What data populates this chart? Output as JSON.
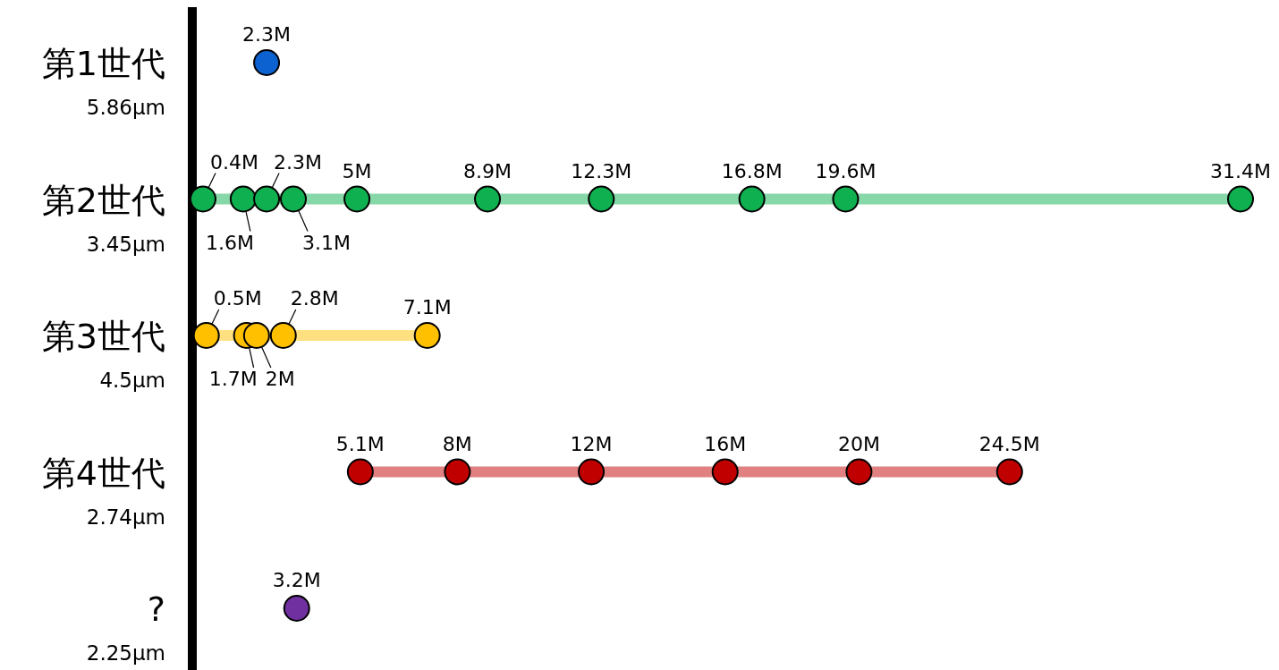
{
  "chart_data": {
    "type": "line",
    "orientation": "horizontal",
    "marker": "circle",
    "categories": [
      "第1世代",
      "第2世代",
      "第3世代",
      "第4世代",
      "?"
    ],
    "y2_categories": [
      "5.86µm",
      "3.45µm",
      "4.5µm",
      "2.74µm",
      "2.25µm"
    ],
    "series": [
      {
        "color": "#0b62d0",
        "values": [
          2.3
        ],
        "x": [
          "第1世代"
        ],
        "value_labels": [
          "2.3M"
        ]
      },
      {
        "color": "#0fb050",
        "values": [
          0.4,
          1.6,
          2.3,
          3.1,
          5,
          8.9,
          12.3,
          16.8,
          19.6,
          31.4
        ],
        "x": [
          "第2世代",
          "第2世代",
          "第2世代",
          "第2世代",
          "第2世代",
          "第2世代",
          "第2世代",
          "第2世代",
          "第2世代",
          "第2世代"
        ],
        "value_labels": [
          "0.4M",
          "1.6M",
          "2.3M",
          "3.1M",
          "5M",
          "8.9M",
          "12.3M",
          "16.8M",
          "19.6M",
          "31.4M"
        ]
      },
      {
        "color": "#ffc000",
        "values": [
          0.5,
          1.7,
          2,
          2.8,
          7.1
        ],
        "x": [
          "第3世代",
          "第3世代",
          "第3世代",
          "第3世代",
          "第3世代"
        ],
        "value_labels": [
          "0.5M",
          "1.7M",
          "2M",
          "2.8M",
          "7.1M"
        ]
      },
      {
        "color": "#c00000",
        "values": [
          5.1,
          8,
          12,
          16,
          20,
          24.5
        ],
        "x": [
          "第4世代",
          "第4世代",
          "第4世代",
          "第4世代",
          "第4世代",
          "第4世代"
        ],
        "value_labels": [
          "5.1M",
          "8M",
          "12M",
          "16M",
          "20M",
          "24.5M"
        ]
      },
      {
        "color": "#7030a0",
        "values": [
          3.2
        ],
        "x": [
          "?"
        ],
        "value_labels": [
          "3.2M"
        ]
      }
    ]
  }
}
